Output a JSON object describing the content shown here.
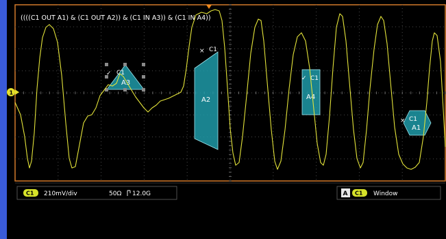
{
  "mask_expression": "((((C1 OUT A1) & (C1 OUT A2)) & (C1 IN A3)) & (C1 IN A4))",
  "channel_marker": "1",
  "colors": {
    "trace": "#e4e43a",
    "mask_fill": "#1f9aa8",
    "grid": "#555555",
    "border": "#d47b2a",
    "side_bar": "#3a5bd8",
    "badge": "#d6e22a"
  },
  "masks": [
    {
      "id": "a3",
      "source": "C1",
      "name": "A3",
      "status": "pass",
      "status_icon": "check-icon"
    },
    {
      "id": "a2",
      "source": "C1",
      "name": "A2",
      "status": "fail",
      "status_icon": "cross-icon"
    },
    {
      "id": "a4",
      "source": "C1",
      "name": "A4",
      "status": "pass",
      "status_icon": "check-icon"
    },
    {
      "id": "a1",
      "source": "C1",
      "name": "A1",
      "status": "fail",
      "status_icon": "cross-icon"
    }
  ],
  "status_bar": {
    "channel_badge": "C1",
    "scale": "210mV/div",
    "impedance": "50Ω",
    "bandwidth_icon": "bandwidth-icon",
    "bandwidth": "12.0G",
    "trigger_badge": "A",
    "trigger_channel": "C1",
    "trigger_type": "Window"
  }
}
